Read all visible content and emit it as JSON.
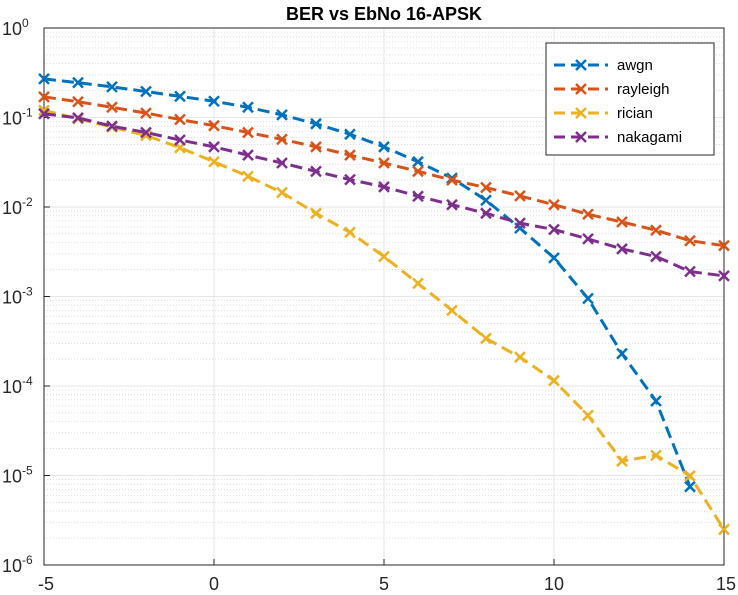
{
  "chart_data": {
    "type": "line",
    "title": "BER vs EbNo 16-APSK",
    "xlabel": "",
    "ylabel": "",
    "xlim": [
      -5,
      15
    ],
    "ylim_exponents": [
      -6,
      0
    ],
    "yscale": "log",
    "grid": true,
    "minor_grid": true,
    "legend_position": "top-right",
    "x_ticks": [
      -5,
      0,
      5,
      10,
      15
    ],
    "y_ticks": [
      {
        "base": "10",
        "exp": "-6"
      },
      {
        "base": "10",
        "exp": "-5"
      },
      {
        "base": "10",
        "exp": "-4"
      },
      {
        "base": "10",
        "exp": "-3"
      },
      {
        "base": "10",
        "exp": "-2"
      },
      {
        "base": "10",
        "exp": "-1"
      },
      {
        "base": "10",
        "exp": "0"
      }
    ],
    "x": [
      -5,
      -4,
      -3,
      -2,
      -1,
      0,
      1,
      2,
      3,
      4,
      5,
      6,
      7,
      8,
      9,
      10,
      11,
      12,
      13,
      14,
      15
    ],
    "series": [
      {
        "name": "awgn",
        "color": "#0072BD",
        "values": [
          0.27,
          0.245,
          0.22,
          0.195,
          0.172,
          0.152,
          0.13,
          0.107,
          0.085,
          0.065,
          0.047,
          0.032,
          0.021,
          0.0119,
          0.0058,
          0.0027,
          0.00095,
          0.00023,
          6.8e-05,
          7.5e-06,
          null
        ]
      },
      {
        "name": "rayleigh",
        "color": "#D95319",
        "values": [
          0.17,
          0.15,
          0.13,
          0.112,
          0.095,
          0.081,
          0.068,
          0.057,
          0.047,
          0.038,
          0.031,
          0.025,
          0.02,
          0.0165,
          0.0133,
          0.0106,
          0.0083,
          0.0068,
          0.0055,
          0.0042,
          0.0037
        ]
      },
      {
        "name": "rician",
        "color": "#EDB120",
        "values": [
          0.12,
          0.097,
          0.078,
          0.063,
          0.046,
          0.032,
          0.022,
          0.0145,
          0.0085,
          0.0052,
          0.0028,
          0.0014,
          0.0007,
          0.00034,
          0.00021,
          0.000115,
          4.7e-05,
          1.45e-05,
          1.68e-05,
          9.9e-06,
          2.5e-06
        ]
      },
      {
        "name": "nakagami",
        "color": "#7E2F8E",
        "values": [
          0.11,
          0.099,
          0.08,
          0.068,
          0.056,
          0.047,
          0.038,
          0.031,
          0.025,
          0.0202,
          0.0168,
          0.0132,
          0.0106,
          0.0085,
          0.0066,
          0.0056,
          0.0044,
          0.0034,
          0.0028,
          0.0019,
          0.0017
        ]
      }
    ]
  }
}
